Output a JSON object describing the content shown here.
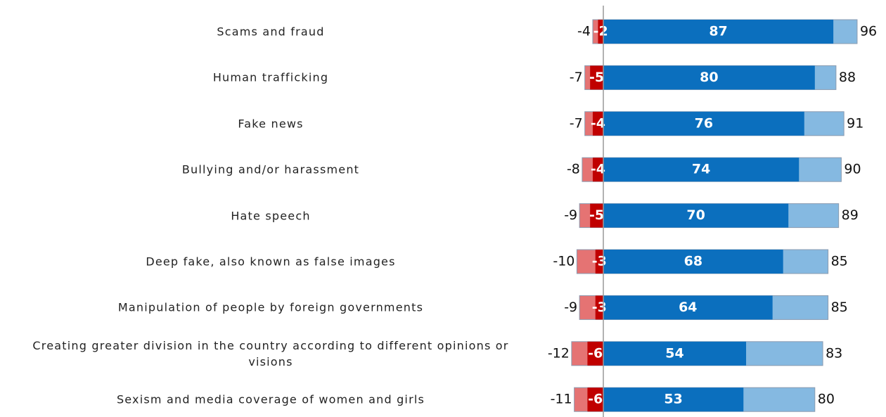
{
  "chart_data": {
    "type": "diverging_bar",
    "categories": [
      "Scams and fraud",
      "Human trafficking",
      "Fake news",
      "Bullying and/or harassment",
      "Hate speech",
      "Deep fake, also known as false images",
      "Manipulation of people by foreign governments",
      "Creating greater division in the country according to different opinions or visions",
      "Sexism and media coverage of women and girls"
    ],
    "negative_total": {
      "color": "#e57373",
      "values": [
        -4,
        -7,
        -7,
        -8,
        -9,
        -10,
        -9,
        -12,
        -11
      ]
    },
    "negative_strong": {
      "color": "#c00000",
      "values": [
        -2,
        -5,
        -4,
        -4,
        -5,
        -3,
        -3,
        -6,
        -6
      ]
    },
    "positive_strong": {
      "color": "#0b6fbe",
      "values": [
        87,
        80,
        76,
        74,
        70,
        68,
        64,
        54,
        53
      ]
    },
    "positive_total": {
      "color": "#85b9e1",
      "values": [
        96,
        88,
        91,
        90,
        89,
        85,
        85,
        83,
        80
      ]
    }
  }
}
